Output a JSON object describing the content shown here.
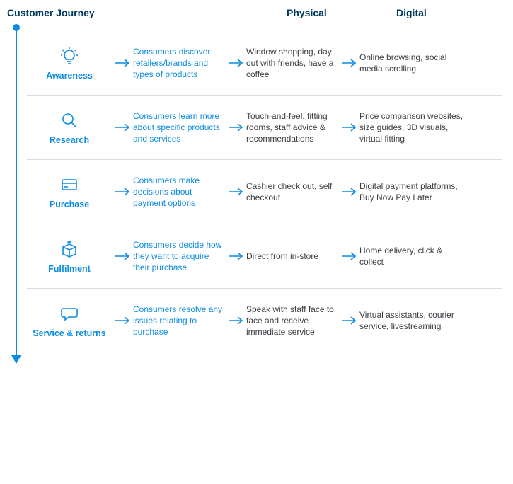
{
  "type": "flowchart",
  "layout": "horizontal-rows-with-vertical-timeline",
  "background_color": "#ffffff",
  "accent_color": "#0d8ce0",
  "header_color": "#003a5d",
  "body_text_color": "#3a3f44",
  "divider_color": "#d9dde0",
  "font_family": "Arial",
  "header_fontsize": 14,
  "stage_name_fontsize": 12.5,
  "body_fontsize": 12,
  "headers": {
    "journey": "Customer Journey",
    "physical": "Physical",
    "digital": "Digital"
  },
  "arrow": {
    "color": "#0d8ce0",
    "length": 22,
    "stroke_width": 1.6
  },
  "timeline": {
    "color": "#0d8ce0",
    "dot_radius": 5,
    "line_width": 2
  },
  "stages": [
    {
      "id": "awareness",
      "icon": "lightbulb-icon",
      "name": "Awareness",
      "description": "Consumers discover retailers/brands and types of products",
      "physical": "Window shopping, day out with friends, have a coffee",
      "digital": "Online browsing, social media scrolling"
    },
    {
      "id": "research",
      "icon": "magnify-icon",
      "name": "Research",
      "description": "Consumers learn more about specific products and services",
      "physical": "Touch-and-feel, fitting rooms, staff advice & recommendations",
      "digital": "Price comparison websites, size guides, 3D visuals, virtual fitting"
    },
    {
      "id": "purchase",
      "icon": "card-icon",
      "name": "Purchase",
      "description": "Consumers make decisions about payment options",
      "physical": "Cashier check out, self checkout",
      "digital": "Digital payment platforms, Buy Now Pay Later"
    },
    {
      "id": "fulfilment",
      "icon": "box-icon",
      "name": "Fulfilment",
      "description": "Consumers decide how they want to acquire their purchase",
      "physical": "Direct from in-store",
      "digital": "Home delivery, click & collect"
    },
    {
      "id": "service-returns",
      "icon": "chat-icon",
      "name": "Service & returns",
      "description": "Consumers resolve any issues relating to purchase",
      "physical": "Speak with staff face to face and receive immediate service",
      "digital": "Virtual assistants, courier service, livestreaming"
    }
  ]
}
